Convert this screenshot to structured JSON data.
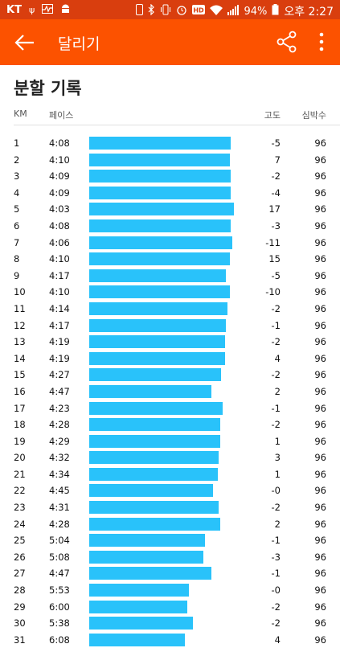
{
  "statusbar": {
    "carrier": "KT",
    "battery": "94%",
    "time": "오후 2:27",
    "icons": [
      "usb-icon",
      "pulse-icon",
      "android-icon",
      "phone-icon",
      "bluetooth-icon",
      "vibrate-icon",
      "alarm-icon",
      "hd-icon",
      "wifi-icon",
      "signal-icon",
      "battery-icon"
    ]
  },
  "appbar": {
    "title": "달리기",
    "back_icon": "arrow-back-icon",
    "share_icon": "share-icon",
    "more_icon": "more-vert-icon"
  },
  "section": {
    "title": "분할 기록",
    "columns": {
      "km": "KM",
      "pace": "페이스",
      "elevation": "고도",
      "heart_rate": "심박수"
    }
  },
  "colors": {
    "appbar": "#FC5200",
    "statusbar": "#D93E0E",
    "bar": "#29C2FA"
  },
  "splits": [
    {
      "km": "1",
      "pace": "4:08",
      "elev": "-5",
      "hr": "96"
    },
    {
      "km": "2",
      "pace": "4:10",
      "elev": "7",
      "hr": "96"
    },
    {
      "km": "3",
      "pace": "4:09",
      "elev": "-2",
      "hr": "96"
    },
    {
      "km": "4",
      "pace": "4:09",
      "elev": "-4",
      "hr": "96"
    },
    {
      "km": "5",
      "pace": "4:03",
      "elev": "17",
      "hr": "96"
    },
    {
      "km": "6",
      "pace": "4:08",
      "elev": "-3",
      "hr": "96"
    },
    {
      "km": "7",
      "pace": "4:06",
      "elev": "-11",
      "hr": "96"
    },
    {
      "km": "8",
      "pace": "4:10",
      "elev": "15",
      "hr": "96"
    },
    {
      "km": "9",
      "pace": "4:17",
      "elev": "-5",
      "hr": "96"
    },
    {
      "km": "10",
      "pace": "4:10",
      "elev": "-10",
      "hr": "96"
    },
    {
      "km": "11",
      "pace": "4:14",
      "elev": "-2",
      "hr": "96"
    },
    {
      "km": "12",
      "pace": "4:17",
      "elev": "-1",
      "hr": "96"
    },
    {
      "km": "13",
      "pace": "4:19",
      "elev": "-2",
      "hr": "96"
    },
    {
      "km": "14",
      "pace": "4:19",
      "elev": "4",
      "hr": "96"
    },
    {
      "km": "15",
      "pace": "4:27",
      "elev": "-2",
      "hr": "96"
    },
    {
      "km": "16",
      "pace": "4:47",
      "elev": "2",
      "hr": "96"
    },
    {
      "km": "17",
      "pace": "4:23",
      "elev": "-1",
      "hr": "96"
    },
    {
      "km": "18",
      "pace": "4:28",
      "elev": "-2",
      "hr": "96"
    },
    {
      "km": "19",
      "pace": "4:29",
      "elev": "1",
      "hr": "96"
    },
    {
      "km": "20",
      "pace": "4:32",
      "elev": "3",
      "hr": "96"
    },
    {
      "km": "21",
      "pace": "4:34",
      "elev": "1",
      "hr": "96"
    },
    {
      "km": "22",
      "pace": "4:45",
      "elev": "-0",
      "hr": "96"
    },
    {
      "km": "23",
      "pace": "4:31",
      "elev": "-2",
      "hr": "96"
    },
    {
      "km": "24",
      "pace": "4:28",
      "elev": "2",
      "hr": "96"
    },
    {
      "km": "25",
      "pace": "5:04",
      "elev": "-1",
      "hr": "96"
    },
    {
      "km": "26",
      "pace": "5:08",
      "elev": "-3",
      "hr": "96"
    },
    {
      "km": "27",
      "pace": "4:47",
      "elev": "-1",
      "hr": "96"
    },
    {
      "km": "28",
      "pace": "5:53",
      "elev": "-0",
      "hr": "96"
    },
    {
      "km": "29",
      "pace": "6:00",
      "elev": "-2",
      "hr": "96"
    },
    {
      "km": "30",
      "pace": "5:38",
      "elev": "-2",
      "hr": "96"
    },
    {
      "km": "31",
      "pace": "6:08",
      "elev": "4",
      "hr": "96"
    }
  ]
}
